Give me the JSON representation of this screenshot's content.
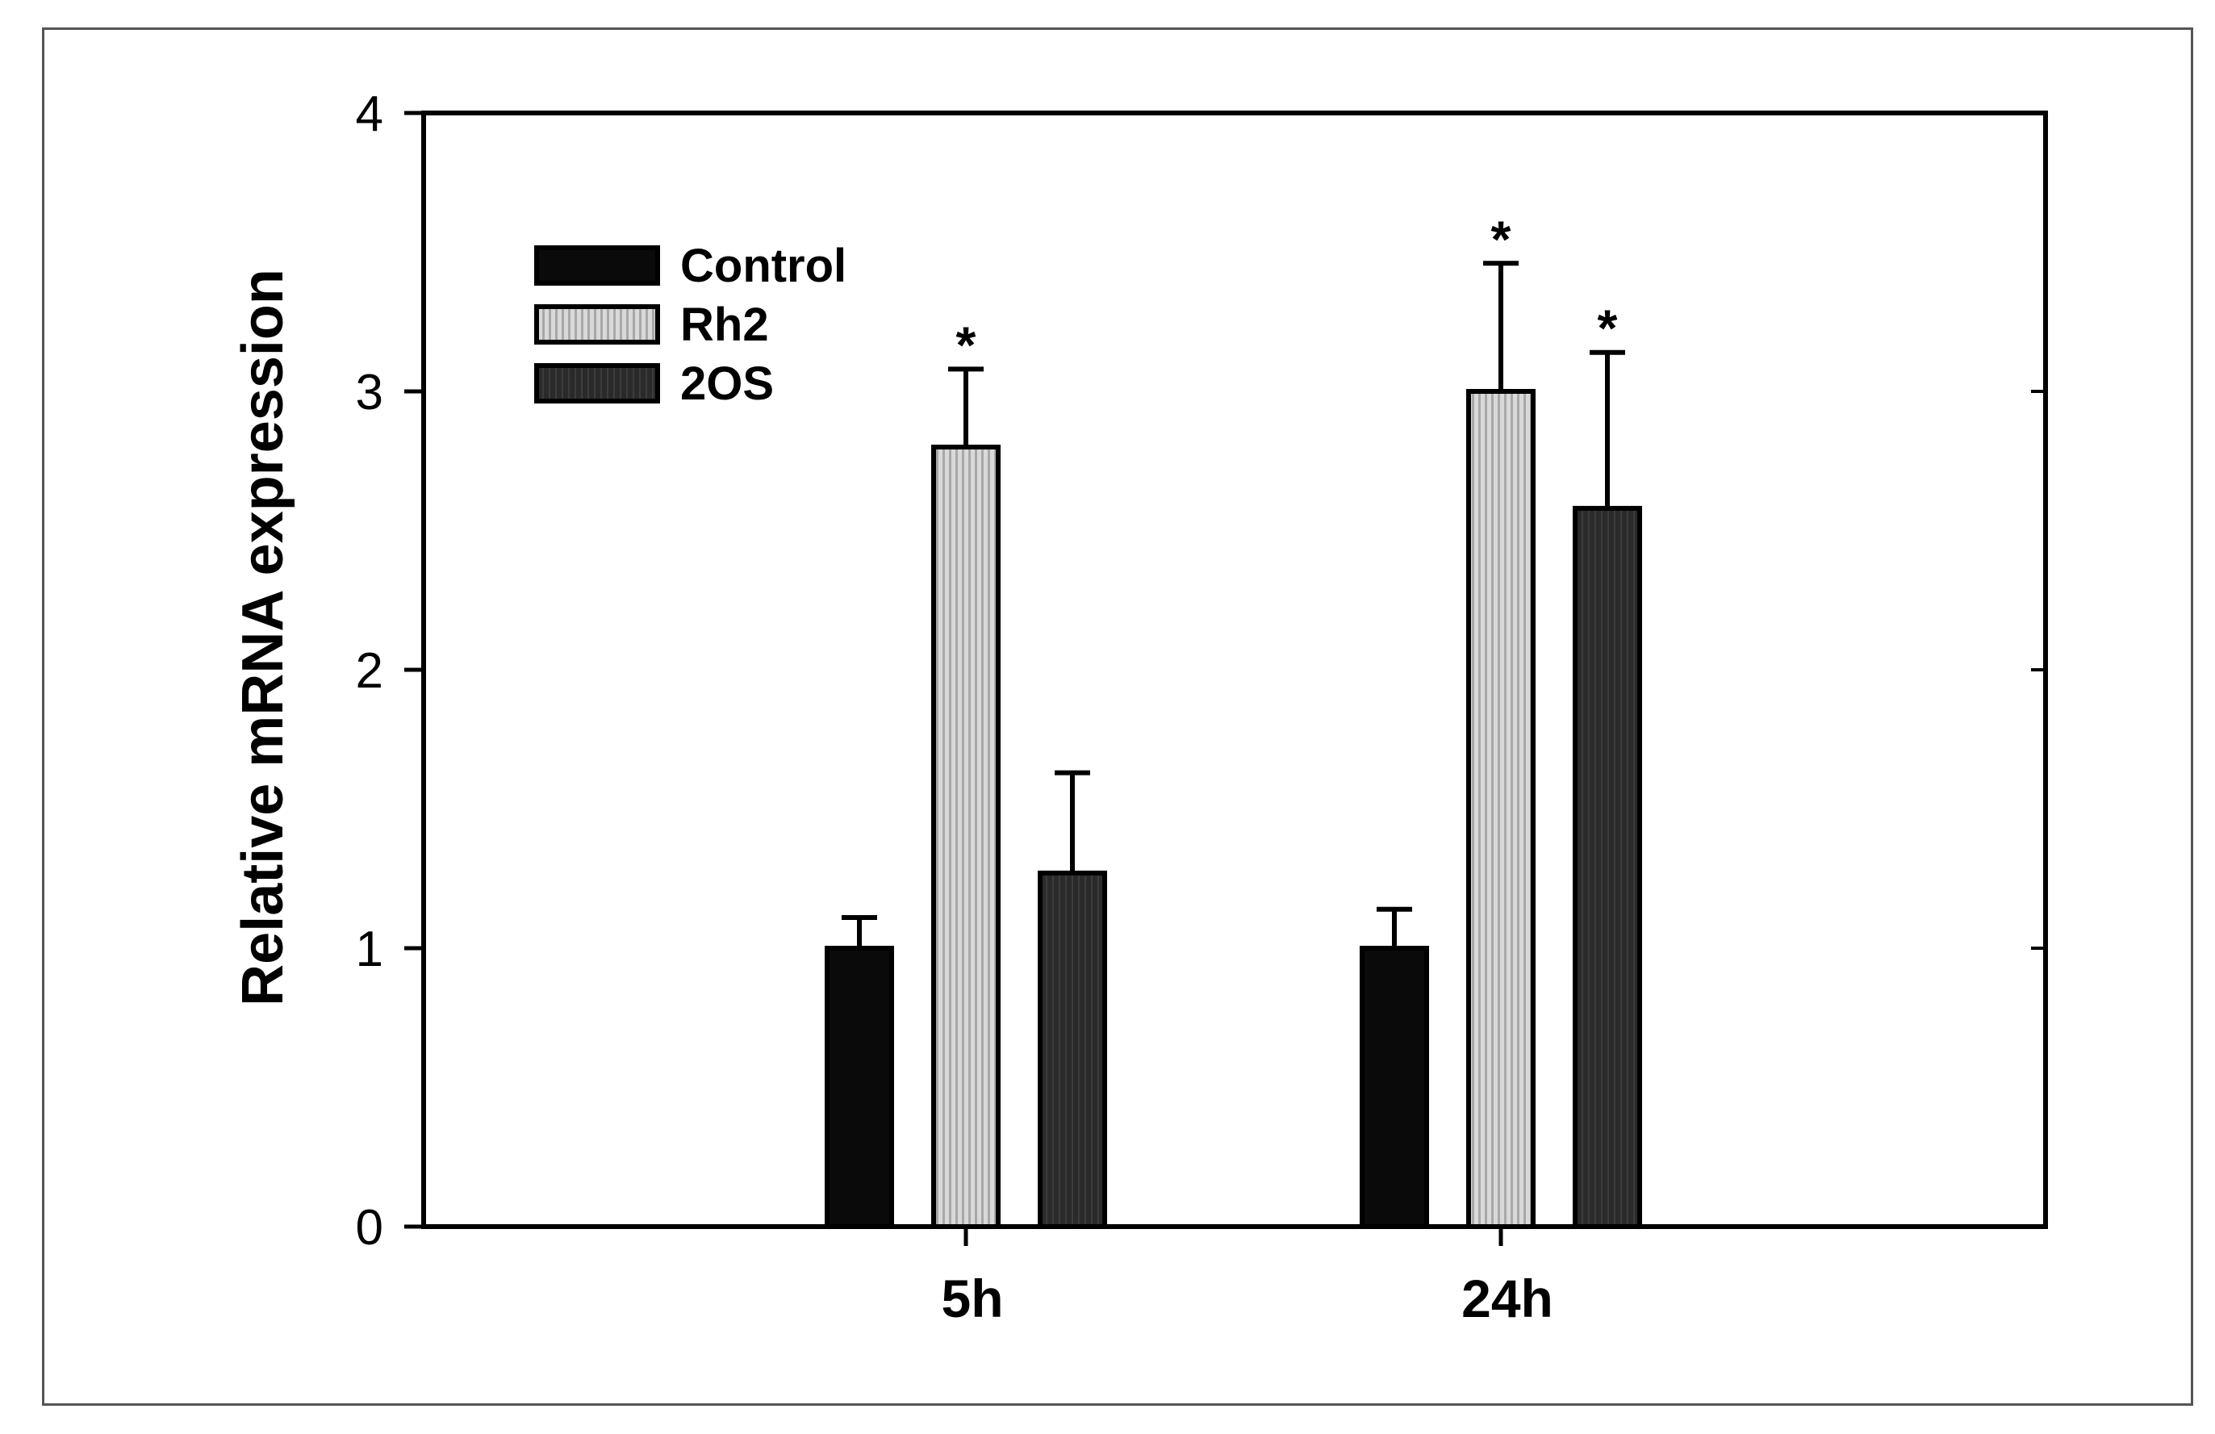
{
  "chart_data": {
    "type": "bar",
    "title": "",
    "xlabel": "",
    "ylabel": "Relative mRNA expression",
    "ylim": [
      0,
      4
    ],
    "yticks": [
      0,
      1,
      2,
      3,
      4
    ],
    "categories": [
      "5h",
      "24h"
    ],
    "series": [
      {
        "name": "Control",
        "values": [
          1.0,
          1.0
        ],
        "errors": [
          0.11,
          0.14
        ],
        "significant": [
          false,
          false
        ],
        "color": "#0a0a0a",
        "style": "solid"
      },
      {
        "name": "Rh2",
        "values": [
          2.8,
          3.0
        ],
        "errors": [
          0.28,
          0.46
        ],
        "significant": [
          true,
          true
        ],
        "color": "#c8c8c8",
        "style": "striped"
      },
      {
        "name": "2OS",
        "values": [
          1.27,
          2.58
        ],
        "errors": [
          0.36,
          0.56
        ],
        "significant": [
          false,
          true
        ],
        "color": "#2e2e2e",
        "style": "dark"
      }
    ],
    "significance_marker": "*",
    "legend_position": "top-left",
    "grid": false
  }
}
